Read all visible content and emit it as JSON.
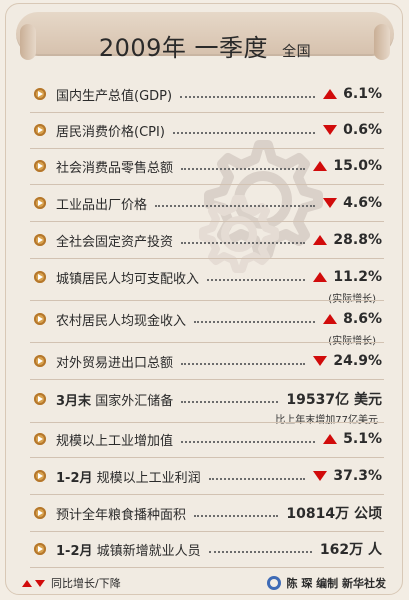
{
  "header": {
    "title_main": "2009年 一季度",
    "title_sub": "全国"
  },
  "colors": {
    "accent_red": "#d10b0b",
    "bullet_gold": "#d8a24e",
    "background": "#f3ede4"
  },
  "items": [
    {
      "label": "国内生产总值(GDP)",
      "direction": "up",
      "value": "6.1%"
    },
    {
      "label": "居民消费价格(CPI)",
      "direction": "down",
      "value": "0.6%"
    },
    {
      "label": "社会消费品零售总额",
      "direction": "up",
      "value": "15.0%"
    },
    {
      "label": "工业品出厂价格",
      "direction": "down",
      "value": "4.6%"
    },
    {
      "label": "全社会固定资产投资",
      "direction": "up",
      "value": "28.8%"
    },
    {
      "label": "城镇居民人均可支配收入",
      "direction": "up",
      "value": "11.2%",
      "note": "(实际增长)"
    },
    {
      "label": "农村居民人均现金收入",
      "direction": "up",
      "value": "8.6%",
      "note": "(实际增长)"
    },
    {
      "label": "对外贸易进出口总额",
      "direction": "down",
      "value": "24.9%"
    },
    {
      "label_bold": "3月末",
      "label": "国家外汇储备",
      "direction": "none",
      "value": "19537亿 美元",
      "note": "比上年末增加77亿美元"
    },
    {
      "label": "规模以上工业增加值",
      "direction": "up",
      "value": "5.1%"
    },
    {
      "label_bold": "1-2月",
      "label": "规模以上工业利润",
      "direction": "down",
      "value": "37.3%"
    },
    {
      "label": "预计全年粮食播种面积",
      "direction": "none",
      "value": "10814万 公顷"
    },
    {
      "label_bold": "1-2月",
      "label": "城镇新增就业人员",
      "direction": "none",
      "value": "162万 人"
    }
  ],
  "footer": {
    "legend_text": "同比增长/下降",
    "credit": "陈 琛 编制 新华社发"
  },
  "icons": {
    "bullet": "play-circle-icon",
    "up": "red-up-triangle-icon",
    "down": "red-down-triangle-icon",
    "decor": "gear-decoration-icon",
    "logo": "xinhua-logo-icon"
  }
}
